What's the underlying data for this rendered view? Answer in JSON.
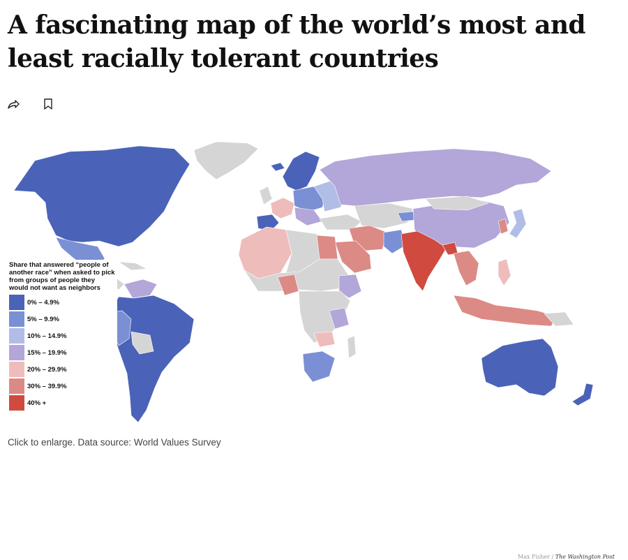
{
  "article": {
    "headline": "A fascinating map of the world’s most and least racially tolerant countries",
    "caption": "Click to enlarge. Data source: World Values Survey"
  },
  "actions": [
    {
      "name": "share-icon"
    },
    {
      "name": "bookmark-icon"
    }
  ],
  "map": {
    "legend_title": "Share that answered “people of another race” when asked to pick from groups of people they would not want as neighbors",
    "legend": [
      {
        "label": "0% – 4.9%",
        "color": "#4a63b8"
      },
      {
        "label": "5% – 9.9%",
        "color": "#7b8fd4"
      },
      {
        "label": "10% – 14.9%",
        "color": "#b1bde6"
      },
      {
        "label": "15% – 19.9%",
        "color": "#b3a6d9"
      },
      {
        "label": "20% – 29.9%",
        "color": "#efbcbc"
      },
      {
        "label": "30% – 39.9%",
        "color": "#dc8a86"
      },
      {
        "label": "40% +",
        "color": "#d04a3f"
      }
    ],
    "no_data_color": "#d5d5d5",
    "credit_author": "Max Fisher",
    "credit_outlet": "The Washington Post"
  }
}
